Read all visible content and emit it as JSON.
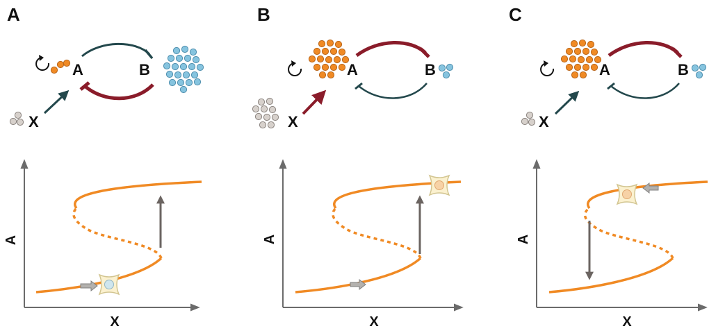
{
  "colors": {
    "orange": "#f08a24",
    "blue": "#86c4df",
    "gray_cell": "#d7d1cc",
    "dark_green": "#23484c",
    "dark_red": "#8a1c2a",
    "axis": "#6b6b6b",
    "cell_fill": "#fbf1cf"
  },
  "panels": [
    {
      "letter": "A",
      "node_a": "A",
      "node_b": "B",
      "input": "X",
      "x_axis": "X",
      "y_axis": "A",
      "a_cell_count": 3,
      "b_cell_count": 21,
      "x_cell_count": 3,
      "dominant": "B",
      "cell_branch": "lower",
      "transition": "up"
    },
    {
      "letter": "B",
      "node_a": "A",
      "node_b": "B",
      "input": "X",
      "x_axis": "X",
      "y_axis": "A",
      "a_cell_count": 18,
      "b_cell_count": 3,
      "x_cell_count": 10,
      "dominant": "A",
      "cell_branch": "upper",
      "transition": "up"
    },
    {
      "letter": "C",
      "node_a": "A",
      "node_b": "B",
      "input": "X",
      "x_axis": "X",
      "y_axis": "A",
      "a_cell_count": 18,
      "b_cell_count": 3,
      "x_cell_count": 3,
      "dominant": "A",
      "cell_branch": "upper",
      "transition": "down"
    }
  ]
}
